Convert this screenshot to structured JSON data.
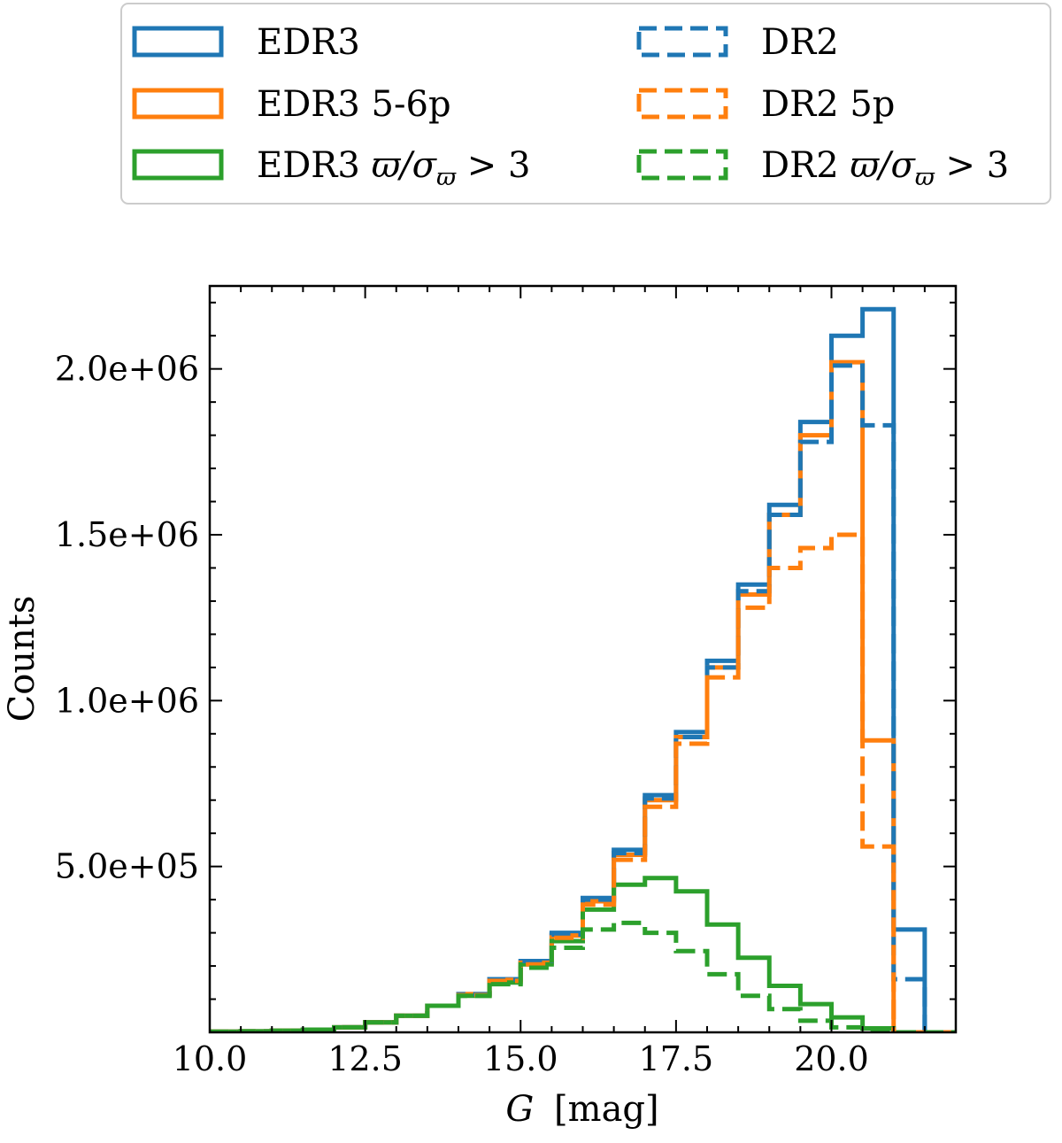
{
  "chart_data": {
    "type": "histogram",
    "xlabel_main": "G",
    "xlabel_unit": "[mag]",
    "ylabel": "Counts",
    "xlim": [
      10.0,
      22.0
    ],
    "ylim": [
      0,
      2250000
    ],
    "xticks": [
      10.0,
      12.5,
      15.0,
      17.5,
      20.0
    ],
    "xtick_labels": [
      "10.0",
      "12.5",
      "15.0",
      "17.5",
      "20.0"
    ],
    "yticks": [
      500000,
      1000000,
      1500000,
      2000000
    ],
    "ytick_labels": [
      "5.0e+05",
      "1.0e+06",
      "1.5e+06",
      "2.0e+06"
    ],
    "bin_edges": [
      10.0,
      10.5,
      11.0,
      11.5,
      12.0,
      12.5,
      13.0,
      13.5,
      14.0,
      14.5,
      15.0,
      15.5,
      16.0,
      16.5,
      17.0,
      17.5,
      18.0,
      18.5,
      19.0,
      19.5,
      20.0,
      20.5,
      21.0,
      21.5,
      22.0
    ],
    "series": [
      {
        "name": "EDR3",
        "color": "#1f77b4",
        "linestyle": "solid",
        "values": [
          2000,
          3000,
          5000,
          8000,
          15000,
          30000,
          50000,
          80000,
          115000,
          160000,
          215000,
          300000,
          405000,
          550000,
          715000,
          905000,
          1120000,
          1350000,
          1590000,
          1840000,
          2100000,
          2180000,
          310000,
          0
        ]
      },
      {
        "name": "EDR3 5-6p",
        "color": "#ff7f0e",
        "linestyle": "solid",
        "values": [
          2000,
          3000,
          5000,
          8000,
          15000,
          30000,
          50000,
          80000,
          115000,
          158000,
          210000,
          292000,
          395000,
          535000,
          700000,
          890000,
          1100000,
          1320000,
          1560000,
          1800000,
          2020000,
          880000,
          0,
          0
        ]
      },
      {
        "name": "EDR3 ϖ/σϖ > 3",
        "color": "#2ca02c",
        "linestyle": "solid",
        "values": [
          2000,
          3000,
          5000,
          8000,
          15000,
          30000,
          50000,
          80000,
          110000,
          150000,
          205000,
          275000,
          370000,
          445000,
          465000,
          425000,
          325000,
          225000,
          140000,
          85000,
          45000,
          12000,
          0,
          0
        ]
      },
      {
        "name": "DR2",
        "color": "#1f77b4",
        "linestyle": "dashed",
        "values": [
          2000,
          3000,
          5000,
          8000,
          15000,
          30000,
          50000,
          80000,
          115000,
          160000,
          215000,
          295000,
          400000,
          540000,
          705000,
          890000,
          1100000,
          1330000,
          1560000,
          1780000,
          2010000,
          1830000,
          160000,
          0
        ]
      },
      {
        "name": "DR2 5p",
        "color": "#ff7f0e",
        "linestyle": "dashed",
        "values": [
          2000,
          3000,
          5000,
          8000,
          15000,
          30000,
          50000,
          80000,
          112000,
          155000,
          205000,
          285000,
          385000,
          520000,
          680000,
          870000,
          1070000,
          1280000,
          1400000,
          1460000,
          1500000,
          560000,
          0,
          0
        ]
      },
      {
        "name": "DR2 ϖ/σϖ > 3",
        "color": "#2ca02c",
        "linestyle": "dashed",
        "values": [
          2000,
          3000,
          5000,
          8000,
          15000,
          30000,
          50000,
          80000,
          110000,
          145000,
          195000,
          255000,
          310000,
          330000,
          300000,
          245000,
          175000,
          110000,
          70000,
          35000,
          15000,
          5000,
          0,
          0
        ]
      }
    ],
    "legend": {
      "placement": "top",
      "columns": 2,
      "entries": [
        {
          "label": "EDR3",
          "color": "#1f77b4",
          "linestyle": "solid",
          "kind": "plain"
        },
        {
          "label": "DR2",
          "color": "#1f77b4",
          "linestyle": "dashed",
          "kind": "plain"
        },
        {
          "label": "EDR3 5-6p",
          "color": "#ff7f0e",
          "linestyle": "solid",
          "kind": "plain"
        },
        {
          "label": "DR2 5p",
          "color": "#ff7f0e",
          "linestyle": "dashed",
          "kind": "plain"
        },
        {
          "label": "EDR3",
          "color": "#2ca02c",
          "linestyle": "solid",
          "kind": "ratio",
          "ratio_sym": "ϖ",
          "ratio_sigma": "σ",
          "ratio_op": "> 3"
        },
        {
          "label": "DR2",
          "color": "#2ca02c",
          "linestyle": "dashed",
          "kind": "ratio",
          "ratio_sym": "ϖ",
          "ratio_sigma": "σ",
          "ratio_op": "> 3"
        }
      ]
    },
    "grid": false
  }
}
